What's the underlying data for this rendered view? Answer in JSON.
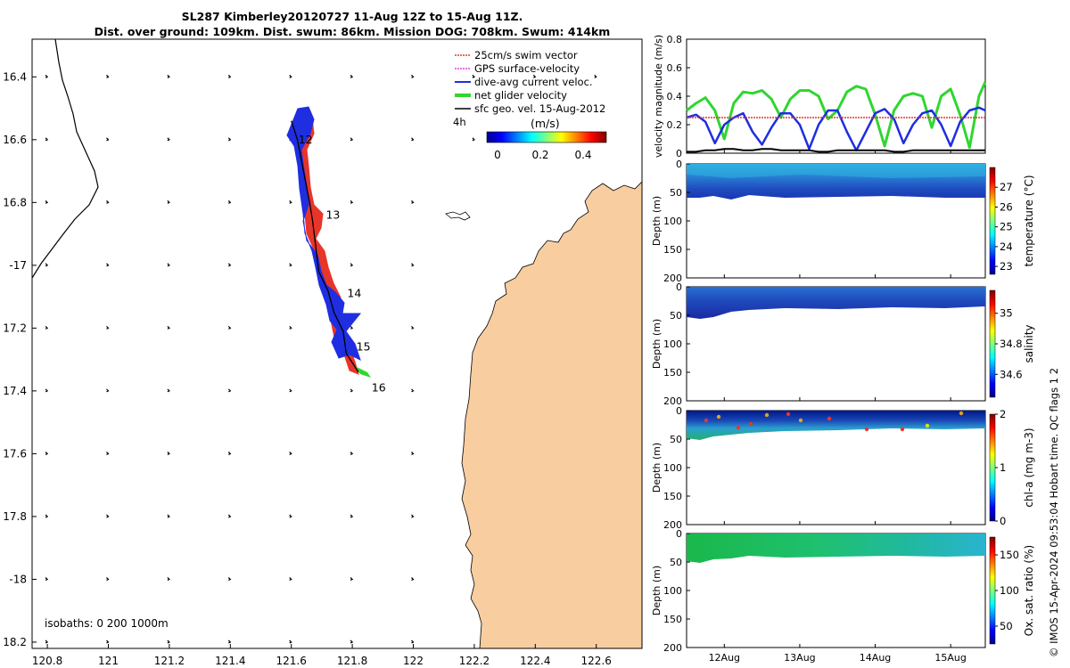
{
  "title_line1": "SL287 Kimberley20120727 11-Aug 12Z to 15-Aug 11Z.",
  "title_line2": "Dist. over ground: 109km. Dist. swum: 86km. Mission DOG: 708km. Swum: 414km",
  "footer": "© IMOS 15-Apr-2024 09:53:04 Hobart time. QC flags 1  2",
  "colors": {
    "land": "#f8cda0",
    "swim": "#e8352a",
    "gps": "#e040e0",
    "current": "#1f2ee0",
    "net": "#2fd62f",
    "geo": "#000000",
    "temp_col": "#2a7fd8",
    "temp_top": "#2fb0e0",
    "sal_col": "#1f4cc0",
    "chl_col": "#2a8fd8",
    "chl_top": "#00168a",
    "ox_col": "#22c060",
    "ox_surf": "#2aa7d8"
  },
  "map": {
    "legend": [
      "25cm/s swim vector",
      "GPS surface-velocity",
      "dive-avg current veloc.",
      "net glider velocity",
      "sfc geo. vel. 15-Aug-2012"
    ],
    "scale_label": "4h",
    "colorbar_unit": "(m/s)",
    "colorbar_ticks": [
      "0",
      "0.2",
      "0.4"
    ],
    "isobaths_label": "isobaths: 0   200  1000m",
    "day_labels": [
      {
        "label": "12",
        "lon": 121.6,
        "lat": -16.6
      },
      {
        "label": "13",
        "lon": 121.69,
        "lat": -16.84
      },
      {
        "label": "14",
        "lon": 121.76,
        "lat": -17.09
      },
      {
        "label": "15",
        "lon": 121.79,
        "lat": -17.26
      },
      {
        "label": "16",
        "lon": 121.84,
        "lat": -17.39
      }
    ],
    "glider_track": [
      [
        121.6,
        -16.54
      ],
      [
        121.62,
        -16.6
      ],
      [
        121.64,
        -16.7
      ],
      [
        121.66,
        -16.8
      ],
      [
        121.67,
        -16.86
      ],
      [
        121.68,
        -16.94
      ],
      [
        121.69,
        -17.02
      ],
      [
        121.72,
        -17.08
      ],
      [
        121.74,
        -17.15
      ],
      [
        121.77,
        -17.21
      ],
      [
        121.78,
        -17.28
      ],
      [
        121.82,
        -17.34
      ]
    ],
    "chart_data": {
      "type": "map",
      "xlim": [
        120.75,
        122.75
      ],
      "ylim": [
        -18.22,
        -16.28
      ],
      "xticks": [
        120.8,
        121,
        121.2,
        121.4,
        121.6,
        121.8,
        122,
        122.2,
        122.4,
        122.6
      ],
      "xtick_labels": [
        "120.8",
        "121",
        "121.2",
        "121.4",
        "121.6",
        "121.8",
        "122",
        "122.2",
        "122.4",
        "122.6"
      ],
      "yticks": [
        -16.4,
        -16.6,
        -16.8,
        -17,
        -17.2,
        -17.4,
        -17.6,
        -17.8,
        -18,
        -18.2
      ],
      "ytick_labels": [
        "16.4",
        "16.6",
        "16.8",
        "-17",
        "17.2",
        "17.4",
        "17.6",
        "17.8",
        "-18",
        "18.2"
      ]
    }
  },
  "chart_data": [
    {
      "type": "line",
      "ylabel": "velocity magnitude (m/s)",
      "xlim": [
        "11-Aug-2012 12:00",
        "15-Aug-2012 11:00"
      ],
      "ylim": [
        0,
        0.8
      ],
      "yticks": [
        0,
        0.2,
        0.4,
        0.6,
        0.8
      ],
      "ytick_labels": [
        "0",
        "0.2",
        "0.4",
        "0.6",
        "0.8"
      ],
      "x_days": [
        11.5,
        11.625,
        11.75,
        11.875,
        12.0,
        12.125,
        12.25,
        12.375,
        12.5,
        12.625,
        12.75,
        12.875,
        13.0,
        13.125,
        13.25,
        13.375,
        13.5,
        13.625,
        13.75,
        13.875,
        14.0,
        14.125,
        14.25,
        14.375,
        14.5,
        14.625,
        14.75,
        14.875,
        15.0,
        15.125,
        15.25,
        15.375,
        15.459
      ],
      "series": [
        {
          "color": "#2fd62f",
          "values": [
            0.3,
            0.35,
            0.39,
            0.3,
            0.1,
            0.35,
            0.43,
            0.42,
            0.44,
            0.38,
            0.25,
            0.38,
            0.44,
            0.44,
            0.4,
            0.24,
            0.3,
            0.43,
            0.47,
            0.45,
            0.27,
            0.05,
            0.3,
            0.4,
            0.42,
            0.4,
            0.18,
            0.4,
            0.45,
            0.27,
            0.04,
            0.4,
            0.5
          ]
        },
        {
          "color": "#1f2ee0",
          "values": [
            0.25,
            0.27,
            0.22,
            0.07,
            0.2,
            0.25,
            0.28,
            0.15,
            0.06,
            0.18,
            0.28,
            0.28,
            0.2,
            0.03,
            0.2,
            0.3,
            0.3,
            0.15,
            0.02,
            0.15,
            0.28,
            0.31,
            0.24,
            0.07,
            0.2,
            0.28,
            0.3,
            0.2,
            0.05,
            0.22,
            0.3,
            0.32,
            0.3
          ]
        },
        {
          "color": "#e8352a",
          "values": [
            0.25,
            0.25,
            0.25,
            0.25,
            0.25,
            0.25,
            0.25,
            0.25,
            0.25,
            0.25,
            0.25,
            0.25,
            0.25,
            0.25,
            0.25,
            0.25,
            0.25,
            0.25,
            0.25,
            0.25,
            0.25,
            0.25,
            0.25,
            0.25,
            0.25,
            0.25,
            0.25,
            0.25,
            0.25,
            0.25,
            0.25,
            0.25,
            0.25
          ]
        },
        {
          "color": "#000000",
          "values": [
            0.01,
            0.01,
            0.02,
            0.02,
            0.03,
            0.03,
            0.02,
            0.02,
            0.03,
            0.03,
            0.02,
            0.02,
            0.02,
            0.02,
            0.01,
            0.01,
            0.02,
            0.02,
            0.02,
            0.02,
            0.02,
            0.02,
            0.01,
            0.01,
            0.02,
            0.02,
            0.02,
            0.02,
            0.02,
            0.02,
            0.02,
            0.02,
            0.02
          ]
        }
      ]
    },
    {
      "type": "heatmap",
      "ylabel": "Depth (m)",
      "colorbar_label": "temperature (°C)",
      "ylim": [
        200,
        0
      ],
      "yticks": [
        0,
        50,
        100,
        150,
        200
      ],
      "ytick_labels": [
        "0",
        "50",
        "100",
        "150",
        "200"
      ],
      "colorbar_range": [
        22.6,
        28
      ],
      "colorbar_ticks": [
        23,
        24,
        25,
        26,
        27
      ],
      "colorbar_tick_labels": [
        "23",
        "24",
        "25",
        "26",
        "27"
      ]
    },
    {
      "type": "heatmap",
      "ylabel": "Depth (m)",
      "colorbar_label": "salinity",
      "ylim": [
        200,
        0
      ],
      "yticks": [
        0,
        50,
        100,
        150,
        200
      ],
      "ytick_labels": [
        "0",
        "50",
        "100",
        "150",
        "200"
      ],
      "colorbar_range": [
        34.45,
        35.15
      ],
      "colorbar_ticks": [
        34.6,
        34.8,
        35
      ],
      "colorbar_tick_labels": [
        "34.6",
        "34.8",
        "35"
      ]
    },
    {
      "type": "heatmap",
      "ylabel": "Depth (m)",
      "colorbar_label": "chl-a (mg m-3)",
      "ylim": [
        200,
        0
      ],
      "yticks": [
        0,
        50,
        100,
        150,
        200
      ],
      "ytick_labels": [
        "0",
        "50",
        "100",
        "150",
        "200"
      ],
      "colorbar_range": [
        0,
        2
      ],
      "colorbar_ticks": [
        0,
        1,
        2
      ],
      "colorbar_tick_labels": [
        "0",
        "1",
        "2"
      ]
    },
    {
      "type": "heatmap",
      "ylabel": "Depth (m)",
      "colorbar_label": "Ox. sat. ratio (%)",
      "ylim": [
        200,
        0
      ],
      "yticks": [
        0,
        50,
        100,
        150,
        200
      ],
      "ytick_labels": [
        "0",
        "50",
        "100",
        "150",
        "200"
      ],
      "colorbar_range": [
        25,
        175
      ],
      "colorbar_ticks": [
        50,
        100,
        150
      ],
      "colorbar_tick_labels": [
        "50",
        "100",
        "150"
      ],
      "xticks": [
        "12Aug",
        "13Aug",
        "14Aug",
        "15Aug"
      ]
    }
  ]
}
